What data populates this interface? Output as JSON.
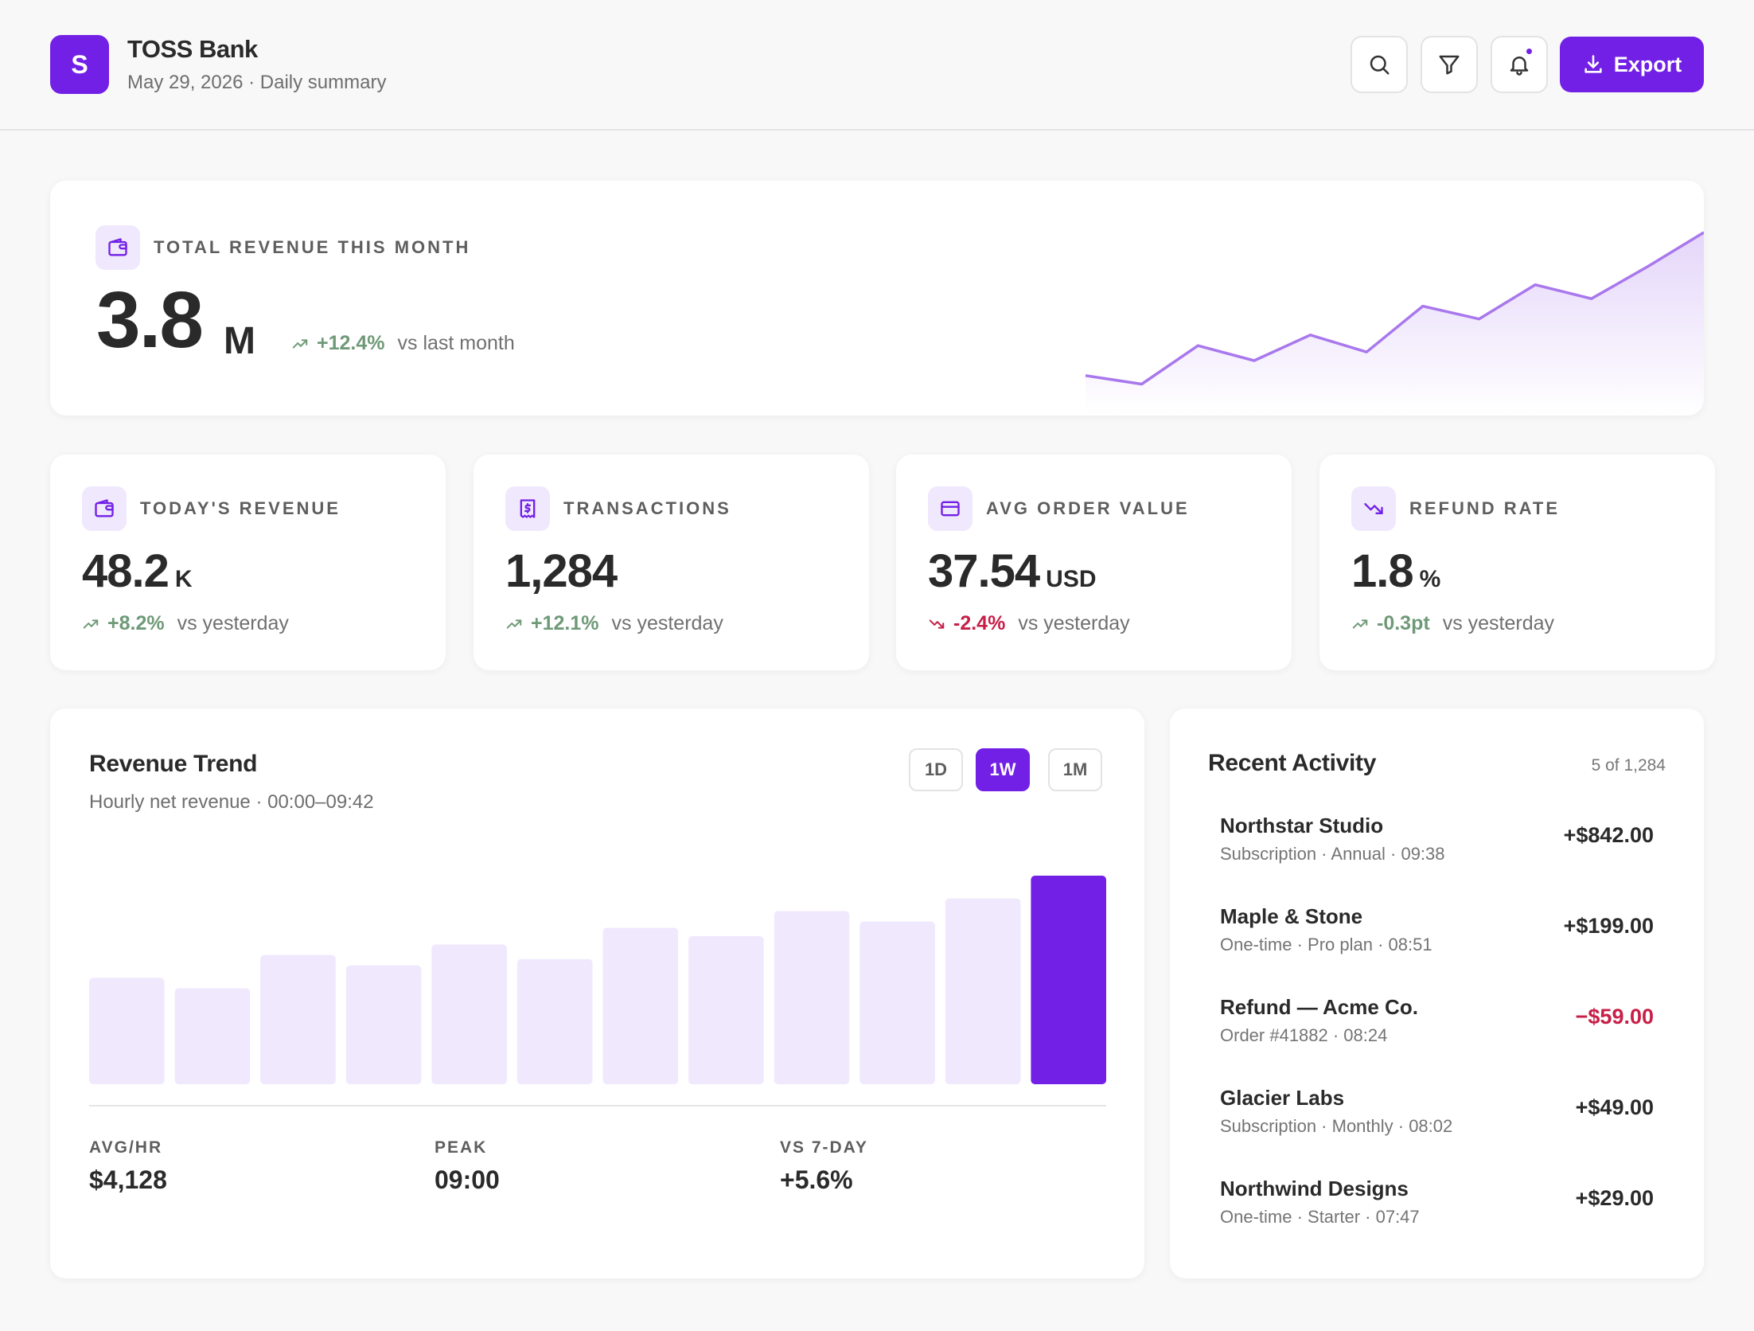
{
  "header": {
    "logo_letter": "S",
    "brand": "TOSS Bank",
    "subtitle": "May 29, 2026 · Daily summary",
    "export_label": "Export"
  },
  "hero": {
    "label": "TOTAL REVENUE THIS MONTH",
    "value": "3.8",
    "unit": "M",
    "change": "+12.4%",
    "change_note": "vs last month",
    "sparkline": [
      30,
      22,
      58,
      44,
      68,
      52,
      95,
      83,
      115,
      102,
      132,
      164
    ]
  },
  "stats": [
    {
      "label": "TODAY'S REVENUE",
      "value": "48.2",
      "unit": "K",
      "change": "+8.2%",
      "note": "vs yesterday",
      "trend": "up",
      "icon": "wallet-icon"
    },
    {
      "label": "TRANSACTIONS",
      "value": "1,284",
      "unit": "",
      "change": "+12.1%",
      "note": "vs yesterday",
      "trend": "up",
      "icon": "receipt-icon"
    },
    {
      "label": "AVG ORDER VALUE",
      "value": "37.54",
      "unit": "USD",
      "change": "-2.4%",
      "note": "vs yesterday",
      "trend": "down",
      "icon": "card-icon"
    },
    {
      "label": "REFUND RATE",
      "value": "1.8",
      "unit": "%",
      "change": "-0.3pt",
      "note": "vs yesterday",
      "trend": "up",
      "icon": "trending-down-icon"
    }
  ],
  "trend": {
    "title": "Revenue Trend",
    "subtitle": "Hourly net revenue · 00:00–09:42",
    "ranges": [
      {
        "label": "1D",
        "active": false
      },
      {
        "label": "1W",
        "active": true
      },
      {
        "label": "1M",
        "active": false
      }
    ],
    "footer": [
      {
        "label": "AVG/HR",
        "value": "$4,128",
        "color": "default"
      },
      {
        "label": "PEAK",
        "value": "09:00",
        "color": "default"
      },
      {
        "label": "VS 7-DAY",
        "value": "+5.6%",
        "color": "green"
      }
    ]
  },
  "chart_data": {
    "type": "bar",
    "values": [
      51,
      46,
      62,
      57,
      67,
      60,
      75,
      71,
      83,
      78,
      89,
      100
    ],
    "highlight_last": true,
    "title": "Revenue Trend"
  },
  "activity": {
    "title": "Recent Activity",
    "count": "5 of 1,284",
    "items": [
      {
        "title": "Northstar Studio",
        "sub": "Subscription · Annual · 09:38",
        "amount": "+$842.00",
        "negative": false
      },
      {
        "title": "Maple & Stone",
        "sub": "One-time · Pro plan · 08:51",
        "amount": "+$199.00",
        "negative": false
      },
      {
        "title": "Refund — Acme Co.",
        "sub": "Order #41882 · 08:24",
        "amount": "−$59.00",
        "negative": true
      },
      {
        "title": "Glacier Labs",
        "sub": "Subscription · Monthly · 08:02",
        "amount": "+$49.00",
        "negative": false
      },
      {
        "title": "Northwind Designs",
        "sub": "One-time · Starter · 07:47",
        "amount": "+$29.00",
        "negative": false
      }
    ]
  },
  "colors": {
    "accent": "#7220e6",
    "accent_soft": "#f0e8fd",
    "positive": "#6f9a78",
    "negative": "#c71f48"
  }
}
